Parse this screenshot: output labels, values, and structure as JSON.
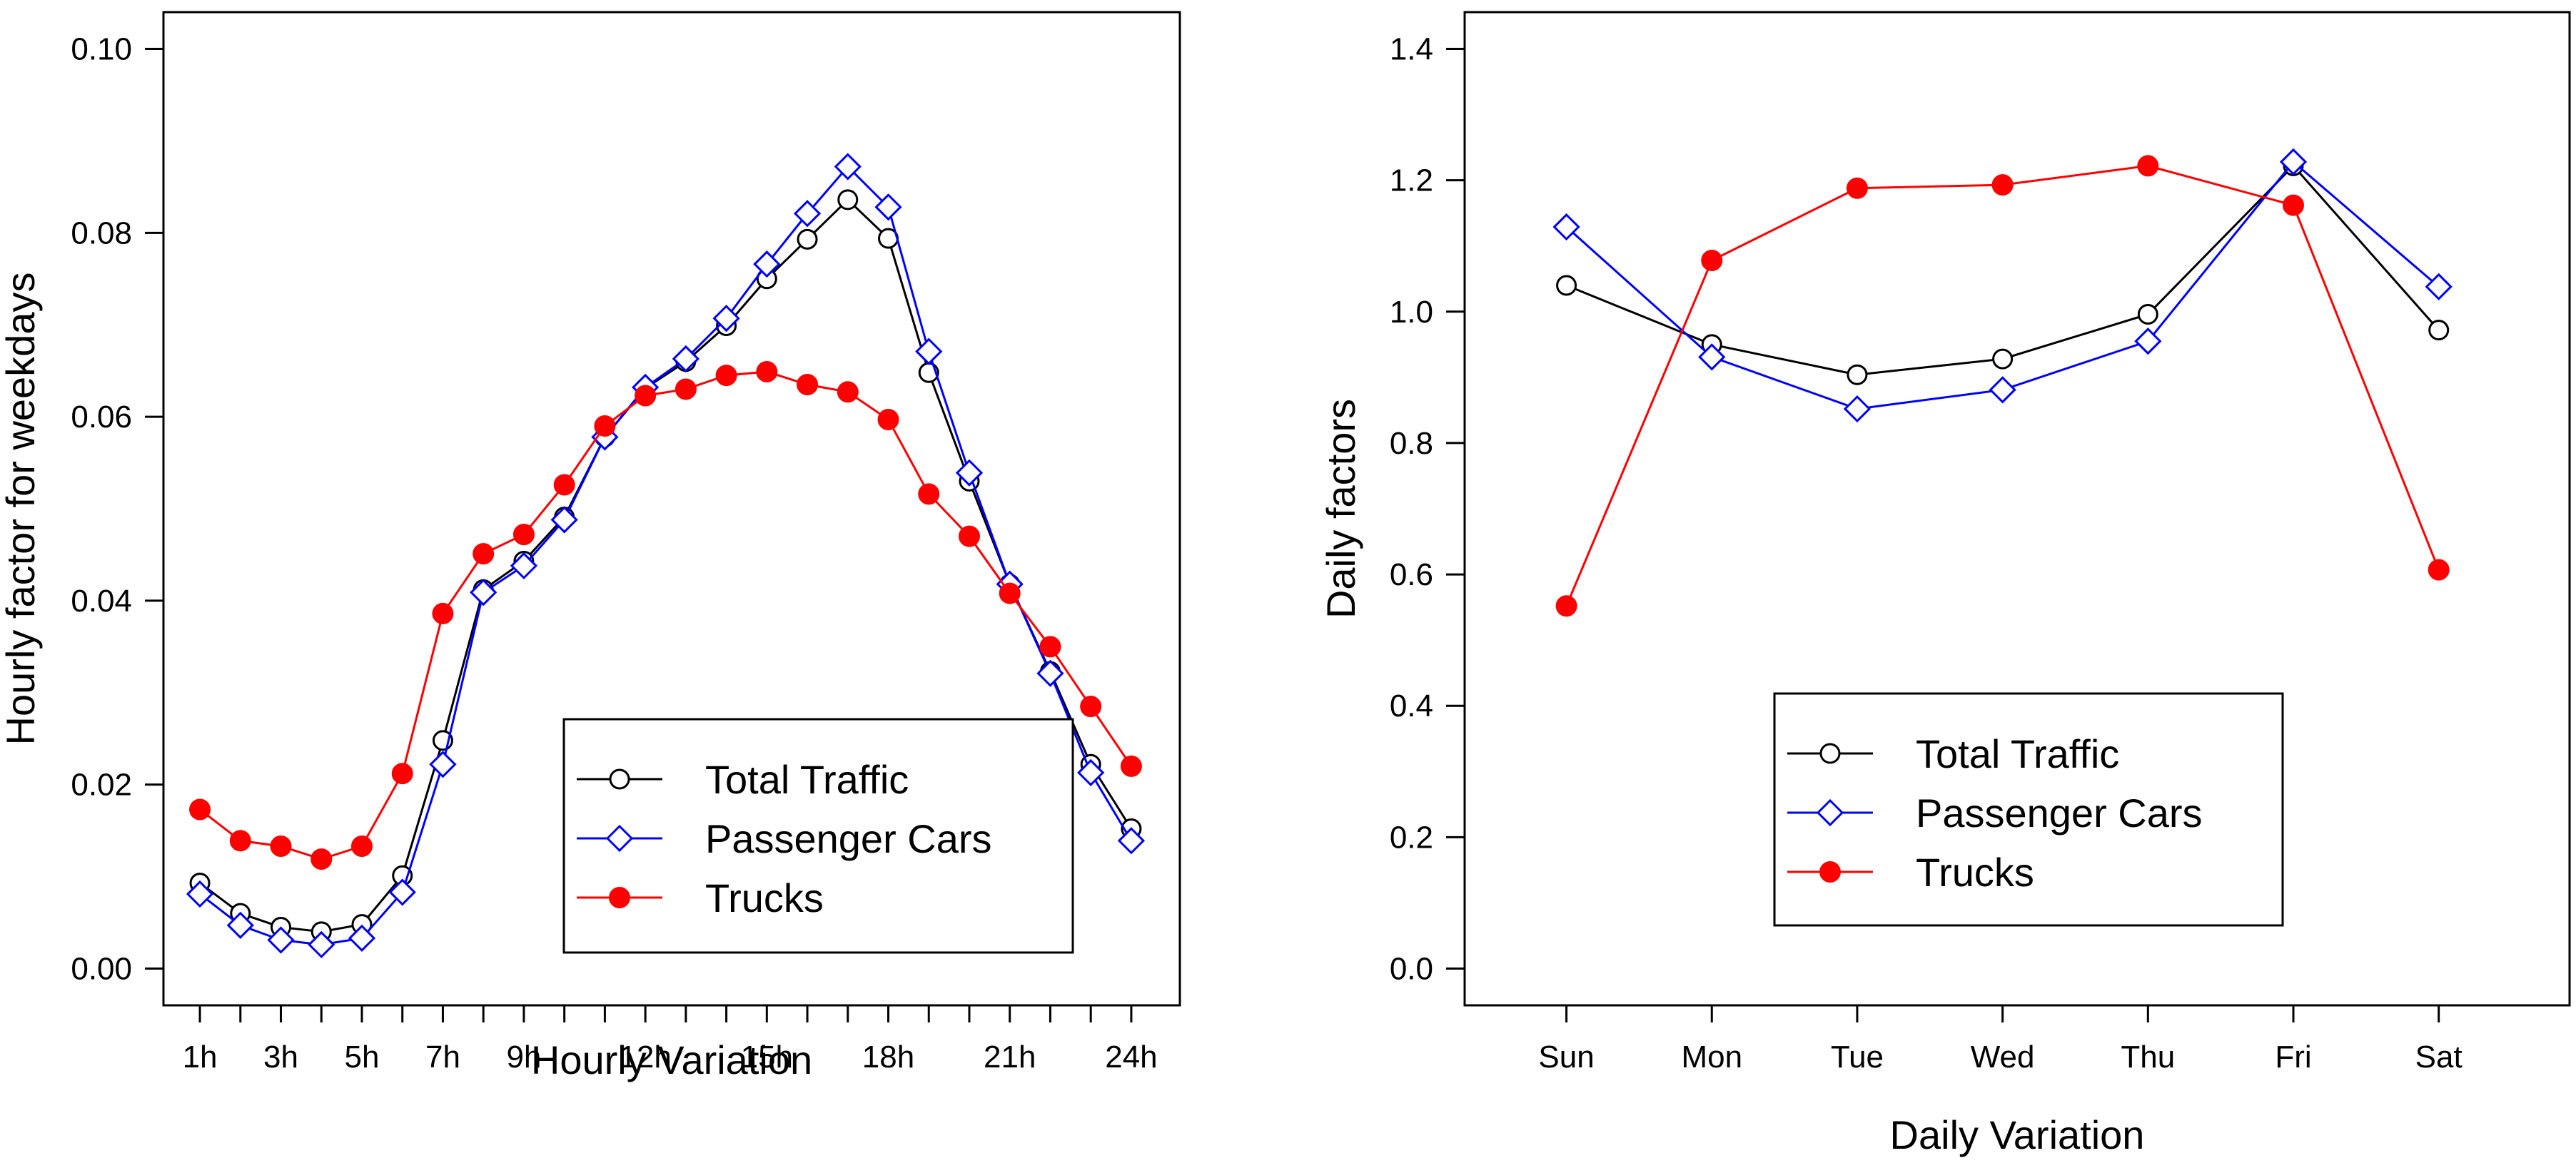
{
  "chart_data": [
    {
      "type": "line",
      "title": "",
      "xlabel": "Hourly Variation",
      "ylabel": "Hourly factor for weekdays",
      "ylim": [
        0.0,
        0.1
      ],
      "yticks": [
        0.0,
        0.02,
        0.04,
        0.06,
        0.08,
        0.1
      ],
      "ytick_labels": [
        "0.00",
        "0.02",
        "0.04",
        "0.06",
        "0.08",
        "0.10"
      ],
      "x": [
        1,
        2,
        3,
        4,
        5,
        6,
        7,
        8,
        9,
        10,
        11,
        12,
        13,
        14,
        15,
        16,
        17,
        18,
        19,
        20,
        21,
        22,
        23,
        24
      ],
      "xlim": [
        0.1,
        25.2
      ],
      "xticks": [
        1,
        2,
        3,
        4,
        5,
        6,
        7,
        8,
        9,
        10,
        11,
        12,
        13,
        14,
        15,
        16,
        17,
        18,
        19,
        20,
        21,
        22,
        23,
        24
      ],
      "xtick_labels": [
        "1h",
        "",
        "3h",
        "",
        "5h",
        "",
        "7h",
        "",
        "9h",
        "",
        "",
        "12h",
        "",
        "",
        "15h",
        "",
        "",
        "18h",
        "",
        "",
        "21h",
        "",
        "",
        "24h"
      ],
      "grid": false,
      "legend_position": "bottom-right",
      "series": [
        {
          "name": "Total Traffic",
          "color": "#000000",
          "marker": "open-circle",
          "values": [
            0.0093,
            0.006,
            0.0045,
            0.004,
            0.0048,
            0.0101,
            0.0248,
            0.0412,
            0.0443,
            0.0491,
            0.0578,
            0.0631,
            0.066,
            0.0699,
            0.075,
            0.0793,
            0.0836,
            0.0794,
            0.0648,
            0.053,
            0.0418,
            0.0323,
            0.0222,
            0.0152
          ]
        },
        {
          "name": "Passenger Cars",
          "color": "#0000ff",
          "marker": "open-diamond",
          "values": [
            0.0081,
            0.0047,
            0.0031,
            0.0026,
            0.0033,
            0.0083,
            0.0222,
            0.0409,
            0.0438,
            0.0488,
            0.0578,
            0.0632,
            0.0663,
            0.0707,
            0.0766,
            0.0821,
            0.0872,
            0.0828,
            0.0671,
            0.0539,
            0.0418,
            0.0321,
            0.0213,
            0.0139
          ]
        },
        {
          "name": "Trucks",
          "color": "#ff0000",
          "marker": "filled-circle",
          "values": [
            0.0173,
            0.0139,
            0.0133,
            0.0119,
            0.0133,
            0.0212,
            0.0386,
            0.0451,
            0.0472,
            0.0526,
            0.059,
            0.0623,
            0.063,
            0.0645,
            0.0649,
            0.0635,
            0.0627,
            0.0597,
            0.0516,
            0.047,
            0.0408,
            0.035,
            0.0285,
            0.022
          ]
        }
      ]
    },
    {
      "type": "line",
      "title": "",
      "xlabel": "Daily Variation",
      "ylabel": "Daily factors",
      "ylim": [
        0.0,
        1.4
      ],
      "yticks": [
        0.0,
        0.2,
        0.4,
        0.6,
        0.8,
        1.0,
        1.2,
        1.4
      ],
      "ytick_labels": [
        "0.0",
        "0.2",
        "0.4",
        "0.6",
        "0.8",
        "1.0",
        "1.2",
        "1.4"
      ],
      "categories": [
        "Sun",
        "Mon",
        "Tue",
        "Wed",
        "Thu",
        "Fri",
        "Sat"
      ],
      "xlim": [
        -0.7,
        6.9
      ],
      "grid": false,
      "legend_position": "bottom-right",
      "series": [
        {
          "name": "Total Traffic",
          "color": "#000000",
          "marker": "open-circle",
          "values": [
            1.04,
            0.95,
            0.904,
            0.928,
            0.996,
            1.222,
            0.972
          ]
        },
        {
          "name": "Passenger Cars",
          "color": "#0000ff",
          "marker": "open-diamond",
          "values": [
            1.129,
            0.931,
            0.852,
            0.881,
            0.955,
            1.228,
            1.038
          ]
        },
        {
          "name": "Trucks",
          "color": "#ff0000",
          "marker": "filled-circle",
          "values": [
            0.552,
            1.078,
            1.188,
            1.193,
            1.222,
            1.162,
            0.607
          ]
        }
      ]
    }
  ]
}
